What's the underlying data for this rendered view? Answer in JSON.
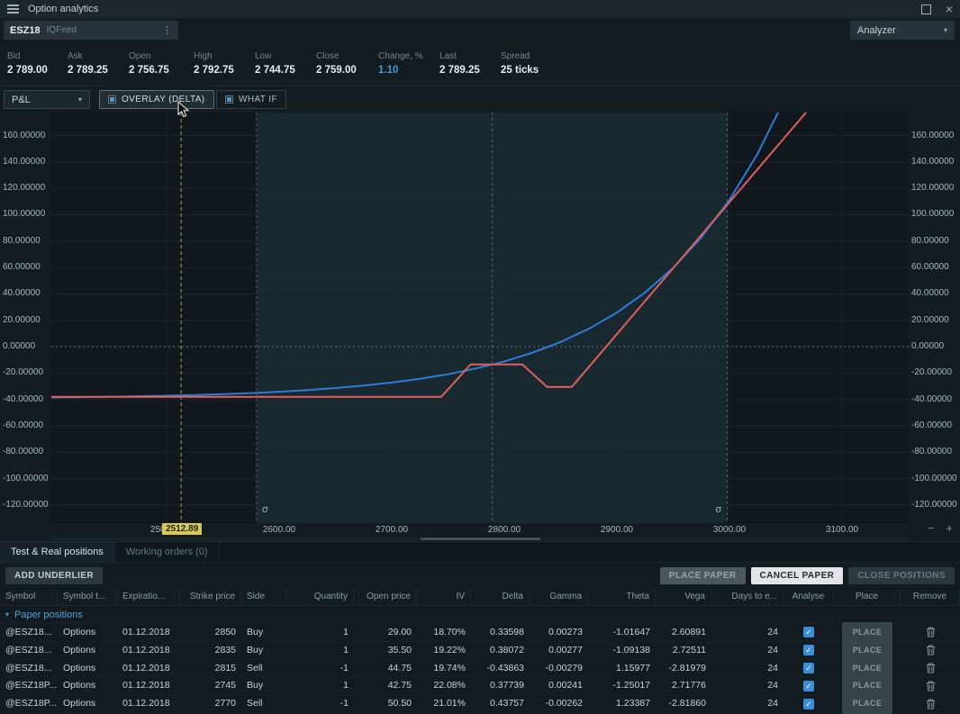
{
  "window": {
    "title": "Option analytics"
  },
  "symbol_bar": {
    "symbol": "ESZ18",
    "feed": "IQFeed",
    "analyzer": "Analyzer"
  },
  "quotes": [
    {
      "label": "Bid",
      "value": "2 789.00"
    },
    {
      "label": "Ask",
      "value": "2 789.25"
    },
    {
      "label": "Open",
      "value": "2 756.75"
    },
    {
      "label": "High",
      "value": "2 792.75"
    },
    {
      "label": "Low",
      "value": "2 744.75"
    },
    {
      "label": "Close",
      "value": "2 759.00"
    },
    {
      "label": "Change, %",
      "value": "1.10",
      "accent": true
    },
    {
      "label": "Last",
      "value": "2 789.25"
    },
    {
      "label": "Spread",
      "value": "25 ticks"
    }
  ],
  "controls": {
    "mode": "P&L",
    "overlay": "OVERLAY (DELTA)",
    "what_if": "WHAT IF"
  },
  "chart_data": {
    "type": "line",
    "title": "",
    "x_ticks": [
      2500,
      2600,
      2700,
      2800,
      2900,
      3000,
      3100
    ],
    "y_ticks": [
      160,
      140,
      120,
      100,
      80,
      60,
      40,
      20,
      0,
      -20,
      -40,
      -60,
      -80,
      -100,
      -120
    ],
    "x_range": [
      2398,
      3158
    ],
    "y_range": [
      -133,
      178
    ],
    "grid": "on",
    "legend": "off",
    "zero_line": 0,
    "center_line": 2789.25,
    "band": {
      "from": 2580,
      "to": 2998,
      "label": "σ"
    },
    "price_marker": {
      "value": 2512.89,
      "label": "2512.89",
      "color": "#d9c75a"
    },
    "series": [
      {
        "name": "theoretical-pnl",
        "color": "#2e7cd6",
        "x": [
          2398,
          2425,
          2450,
          2475,
          2500,
          2525,
          2550,
          2575,
          2600,
          2625,
          2650,
          2675,
          2700,
          2725,
          2750,
          2775,
          2800,
          2825,
          2850,
          2875,
          2900,
          2925,
          2950,
          2975,
          3000,
          3025,
          3050
        ],
        "y": [
          -38.5,
          -38.3,
          -38.0,
          -37.6,
          -37.2,
          -36.7,
          -36.0,
          -35.2,
          -34.2,
          -32.9,
          -31.4,
          -29.5,
          -27.2,
          -24.4,
          -20.9,
          -16.5,
          -11.2,
          -4.6,
          3.5,
          13.5,
          25.8,
          41.0,
          59.7,
          82.8,
          111.2,
          146.2,
          189.3
        ]
      },
      {
        "name": "expiration-pnl",
        "color": "#e05f5f",
        "x": [
          2398,
          2744,
          2770,
          2816,
          2838,
          2860,
          3075
        ],
        "y": [
          -38.0,
          -38.0,
          -13.5,
          -13.5,
          -30.5,
          -30.5,
          184.5
        ]
      }
    ]
  },
  "chart_footer": {
    "zoom_out": "−",
    "zoom_in": "+"
  },
  "tabs": [
    {
      "label": "Test & Real positions",
      "active": true
    },
    {
      "label": "Working orders (0)",
      "active": false
    }
  ],
  "toolbar": {
    "add_underlier": "ADD UNDERLIER",
    "place_paper": "PLACE PAPER",
    "cancel_paper": "CANCEL PAPER",
    "close_positions": "CLOSE POSITIONS"
  },
  "table": {
    "columns": [
      "Symbol",
      "Symbol t...",
      "Expiratio...",
      "Strike price",
      "Side",
      "Quantity",
      "Open price",
      "IV",
      "Delta",
      "Gamma",
      "Theta",
      "Vega",
      "Days to e...",
      "Analyse",
      "Place",
      "Remove"
    ],
    "group_label": "Paper positions",
    "place_label": "PLACE",
    "rows": [
      [
        "@ESZ18...",
        "Options",
        "01.12.2018",
        "2850",
        "Buy",
        "1",
        "29.00",
        "18.70%",
        "0.33598",
        "0.00273",
        "-1.01647",
        "2.60891",
        "24"
      ],
      [
        "@ESZ18...",
        "Options",
        "01.12.2018",
        "2835",
        "Buy",
        "1",
        "35.50",
        "19.22%",
        "0.38072",
        "0.00277",
        "-1.09138",
        "2.72511",
        "24"
      ],
      [
        "@ESZ18...",
        "Options",
        "01.12.2018",
        "2815",
        "Sell",
        "-1",
        "44.75",
        "19.74%",
        "-0.43863",
        "-0.00279",
        "1.15977",
        "-2.81979",
        "24"
      ],
      [
        "@ESZ18P...",
        "Options",
        "01.12.2018",
        "2745",
        "Buy",
        "1",
        "42.75",
        "22.08%",
        "0.37739",
        "0.00241",
        "-1.25017",
        "2.71776",
        "24"
      ],
      [
        "@ESZ18P...",
        "Options",
        "01.12.2018",
        "2770",
        "Sell",
        "-1",
        "50.50",
        "21.01%",
        "0.43757",
        "-0.00262",
        "1.23387",
        "-2.81860",
        "24"
      ]
    ]
  }
}
